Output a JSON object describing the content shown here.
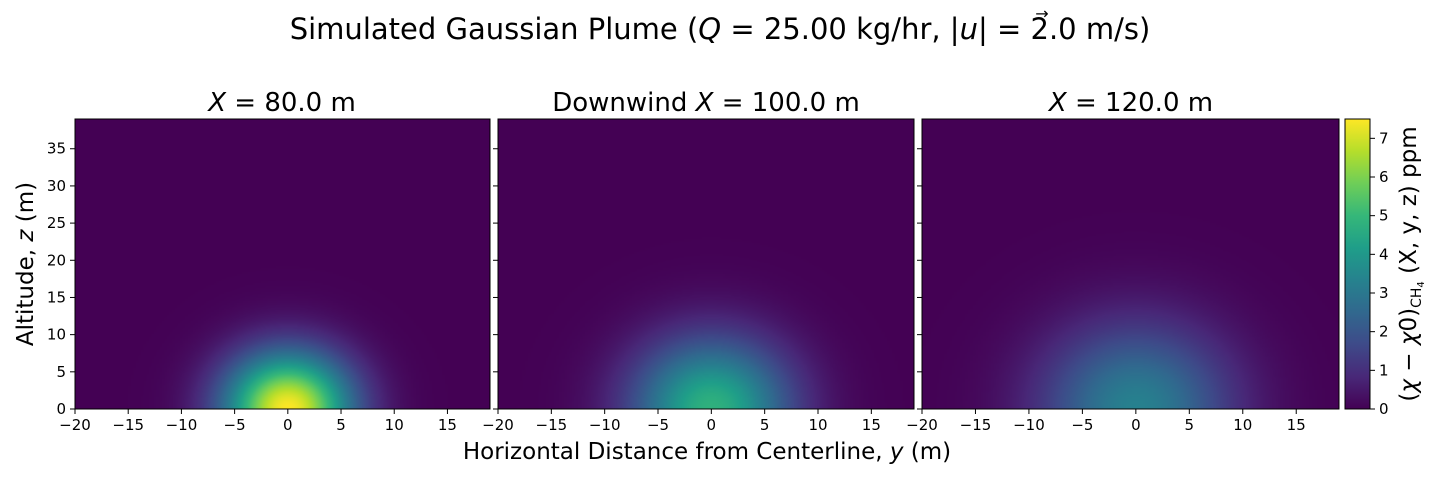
{
  "chart_data": {
    "type": "heatmap",
    "title": {
      "pre": "Simulated Gaussian Plume (",
      "q_sym": "Q",
      "q_val": " = 25.00 kg/hr, |",
      "u_sym": "u",
      "u_arrow": "→",
      "u_val": "| = 2.0 m/s)"
    },
    "panels": [
      {
        "title_pre": "",
        "title_var": "X",
        "title_val": " = 80.0 m",
        "x_downwind_m": 80.0,
        "peak_ppm": 7.5,
        "sigma_y_m": 4.2,
        "sigma_z_m": 5.3
      },
      {
        "title_pre": "Downwind ",
        "title_var": "X",
        "title_val": " = 100.0 m",
        "x_downwind_m": 100.0,
        "peak_ppm": 4.8,
        "sigma_y_m": 5.2,
        "sigma_z_m": 6.6
      },
      {
        "title_pre": "",
        "title_var": "X",
        "title_val": " = 120.0 m",
        "x_downwind_m": 120.0,
        "peak_ppm": 3.3,
        "sigma_y_m": 6.2,
        "sigma_z_m": 7.9
      }
    ],
    "xlabel": {
      "pre": "Horizontal Distance from Centerline, ",
      "var": "y",
      "post": " (m)"
    },
    "ylabel": {
      "pre": "Altitude, ",
      "var": "z",
      "post": " (m)"
    },
    "xlim": [
      -20,
      19
    ],
    "ylim": [
      0,
      39
    ],
    "xticks": [
      -20,
      -15,
      -10,
      -5,
      0,
      5,
      10,
      15
    ],
    "yticks": [
      0,
      5,
      10,
      15,
      20,
      25,
      30,
      35
    ],
    "colorbar": {
      "min": 0,
      "max": 7.5,
      "ticks": [
        0,
        1,
        2,
        3,
        4,
        5,
        6,
        7
      ],
      "label": "(χ − χ0)CH4 (X, y, z) ppm",
      "label_parts": {
        "open": "(",
        "chi": "χ",
        "minus": " − ",
        "chi0": "χ",
        "zero": "0",
        "close": ")",
        "sub": "CH",
        "sub4": "4",
        "args": " (X, y, z) ppm"
      }
    },
    "colormap": "viridis",
    "colormap_stops": [
      "#440154",
      "#482878",
      "#3e4a89",
      "#31688e",
      "#26828e",
      "#1f9e89",
      "#35b779",
      "#6ece58",
      "#b5de2b",
      "#fde725"
    ]
  }
}
